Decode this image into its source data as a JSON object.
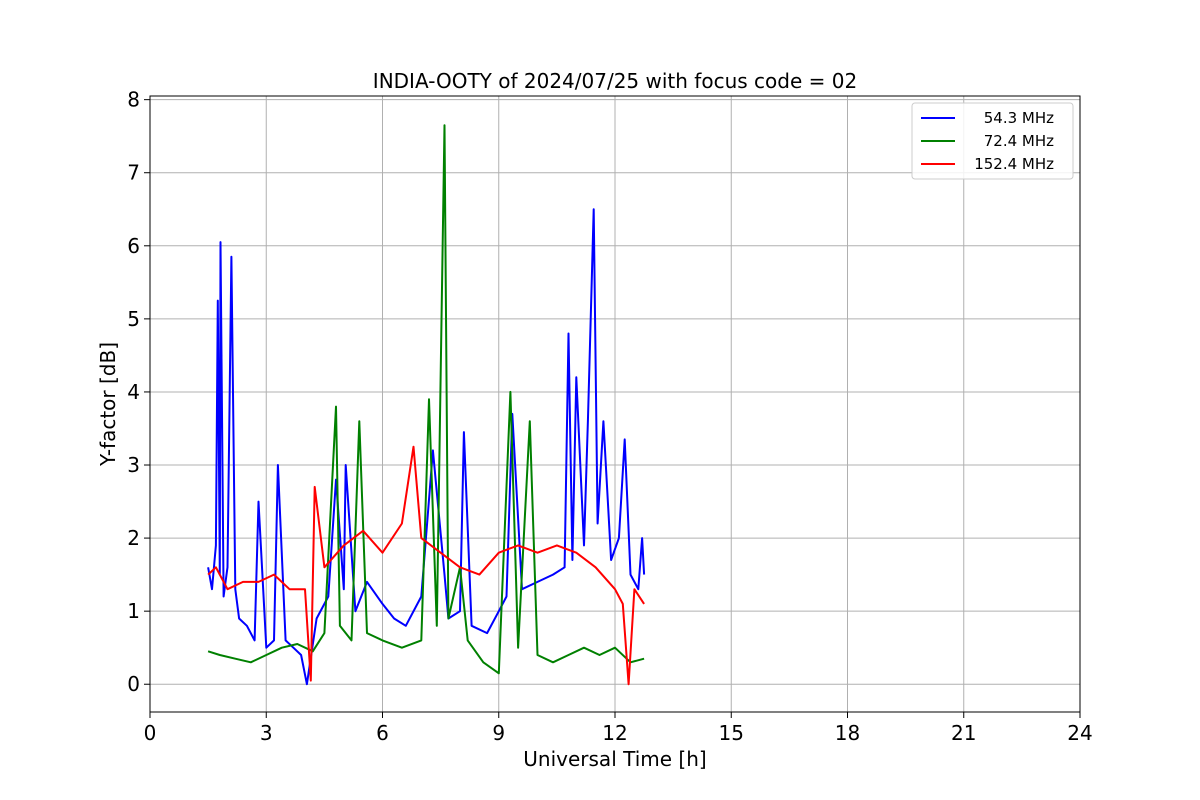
{
  "chart_data": {
    "type": "line",
    "title": "INDIA-OOTY of 2024/07/25 with focus code = 02",
    "xlabel": "Universal Time [h]",
    "ylabel": "Y-factor [dB]",
    "xlim": [
      0,
      24
    ],
    "ylim": [
      -0.38,
      8.05
    ],
    "xticks": [
      0,
      3,
      6,
      9,
      12,
      15,
      18,
      21,
      24
    ],
    "yticks": [
      0,
      1,
      2,
      3,
      4,
      5,
      6,
      7,
      8
    ],
    "grid": true,
    "legend_position": "top-right",
    "series": [
      {
        "name": "54.3 MHz",
        "color": "#0000ff",
        "points": [
          [
            1.5,
            1.6
          ],
          [
            1.6,
            1.3
          ],
          [
            1.7,
            1.9
          ],
          [
            1.75,
            5.25
          ],
          [
            1.8,
            1.5
          ],
          [
            1.82,
            6.05
          ],
          [
            1.9,
            1.2
          ],
          [
            2.0,
            1.6
          ],
          [
            2.1,
            5.85
          ],
          [
            2.2,
            1.3
          ],
          [
            2.3,
            0.9
          ],
          [
            2.5,
            0.8
          ],
          [
            2.7,
            0.6
          ],
          [
            2.8,
            2.5
          ],
          [
            3.0,
            0.5
          ],
          [
            3.2,
            0.6
          ],
          [
            3.3,
            3.0
          ],
          [
            3.5,
            0.6
          ],
          [
            3.7,
            0.5
          ],
          [
            3.9,
            0.4
          ],
          [
            4.05,
            0.0
          ],
          [
            4.3,
            0.9
          ],
          [
            4.6,
            1.2
          ],
          [
            4.8,
            2.8
          ],
          [
            5.0,
            1.3
          ],
          [
            5.05,
            3.0
          ],
          [
            5.3,
            1.0
          ],
          [
            5.6,
            1.4
          ],
          [
            6.0,
            1.1
          ],
          [
            6.3,
            0.9
          ],
          [
            6.6,
            0.8
          ],
          [
            7.0,
            1.2
          ],
          [
            7.3,
            3.2
          ],
          [
            7.6,
            1.5
          ],
          [
            7.7,
            0.9
          ],
          [
            8.0,
            1.0
          ],
          [
            8.1,
            3.45
          ],
          [
            8.3,
            0.8
          ],
          [
            8.7,
            0.7
          ],
          [
            9.0,
            1.0
          ],
          [
            9.2,
            1.2
          ],
          [
            9.35,
            3.7
          ],
          [
            9.6,
            1.3
          ],
          [
            10.0,
            1.4
          ],
          [
            10.4,
            1.5
          ],
          [
            10.7,
            1.6
          ],
          [
            10.8,
            4.8
          ],
          [
            10.9,
            1.7
          ],
          [
            11.0,
            4.2
          ],
          [
            11.2,
            1.9
          ],
          [
            11.3,
            3.6
          ],
          [
            11.45,
            6.5
          ],
          [
            11.55,
            2.2
          ],
          [
            11.7,
            3.6
          ],
          [
            11.9,
            1.7
          ],
          [
            12.1,
            2.0
          ],
          [
            12.25,
            3.35
          ],
          [
            12.4,
            1.5
          ],
          [
            12.6,
            1.3
          ],
          [
            12.7,
            2.0
          ],
          [
            12.75,
            1.5
          ]
        ]
      },
      {
        "name": "72.4 MHz",
        "color": "#008000",
        "points": [
          [
            1.5,
            0.45
          ],
          [
            1.8,
            0.4
          ],
          [
            2.2,
            0.35
          ],
          [
            2.6,
            0.3
          ],
          [
            3.0,
            0.4
          ],
          [
            3.4,
            0.5
          ],
          [
            3.8,
            0.55
          ],
          [
            4.2,
            0.45
          ],
          [
            4.5,
            0.7
          ],
          [
            4.8,
            3.8
          ],
          [
            4.9,
            0.8
          ],
          [
            5.2,
            0.6
          ],
          [
            5.4,
            3.6
          ],
          [
            5.6,
            0.7
          ],
          [
            6.0,
            0.6
          ],
          [
            6.5,
            0.5
          ],
          [
            7.0,
            0.6
          ],
          [
            7.2,
            3.9
          ],
          [
            7.4,
            0.8
          ],
          [
            7.6,
            7.65
          ],
          [
            7.7,
            0.9
          ],
          [
            8.0,
            1.6
          ],
          [
            8.2,
            0.6
          ],
          [
            8.6,
            0.3
          ],
          [
            9.0,
            0.15
          ],
          [
            9.3,
            4.0
          ],
          [
            9.5,
            0.5
          ],
          [
            9.8,
            3.6
          ],
          [
            10.0,
            0.4
          ],
          [
            10.4,
            0.3
          ],
          [
            10.8,
            0.4
          ],
          [
            11.2,
            0.5
          ],
          [
            11.6,
            0.4
          ],
          [
            12.0,
            0.5
          ],
          [
            12.4,
            0.3
          ],
          [
            12.75,
            0.35
          ]
        ]
      },
      {
        "name": "152.4 MHz",
        "color": "#ff0000",
        "points": [
          [
            1.5,
            1.5
          ],
          [
            1.7,
            1.6
          ],
          [
            2.0,
            1.3
          ],
          [
            2.4,
            1.4
          ],
          [
            2.8,
            1.4
          ],
          [
            3.2,
            1.5
          ],
          [
            3.6,
            1.3
          ],
          [
            4.0,
            1.3
          ],
          [
            4.15,
            0.05
          ],
          [
            4.25,
            2.7
          ],
          [
            4.5,
            1.6
          ],
          [
            5.0,
            1.9
          ],
          [
            5.5,
            2.1
          ],
          [
            6.0,
            1.8
          ],
          [
            6.5,
            2.2
          ],
          [
            6.8,
            3.25
          ],
          [
            7.0,
            2.0
          ],
          [
            7.5,
            1.8
          ],
          [
            8.0,
            1.6
          ],
          [
            8.5,
            1.5
          ],
          [
            9.0,
            1.8
          ],
          [
            9.5,
            1.9
          ],
          [
            10.0,
            1.8
          ],
          [
            10.5,
            1.9
          ],
          [
            11.0,
            1.8
          ],
          [
            11.5,
            1.6
          ],
          [
            12.0,
            1.3
          ],
          [
            12.2,
            1.1
          ],
          [
            12.35,
            0.0
          ],
          [
            12.5,
            1.3
          ],
          [
            12.75,
            1.1
          ]
        ]
      }
    ]
  }
}
